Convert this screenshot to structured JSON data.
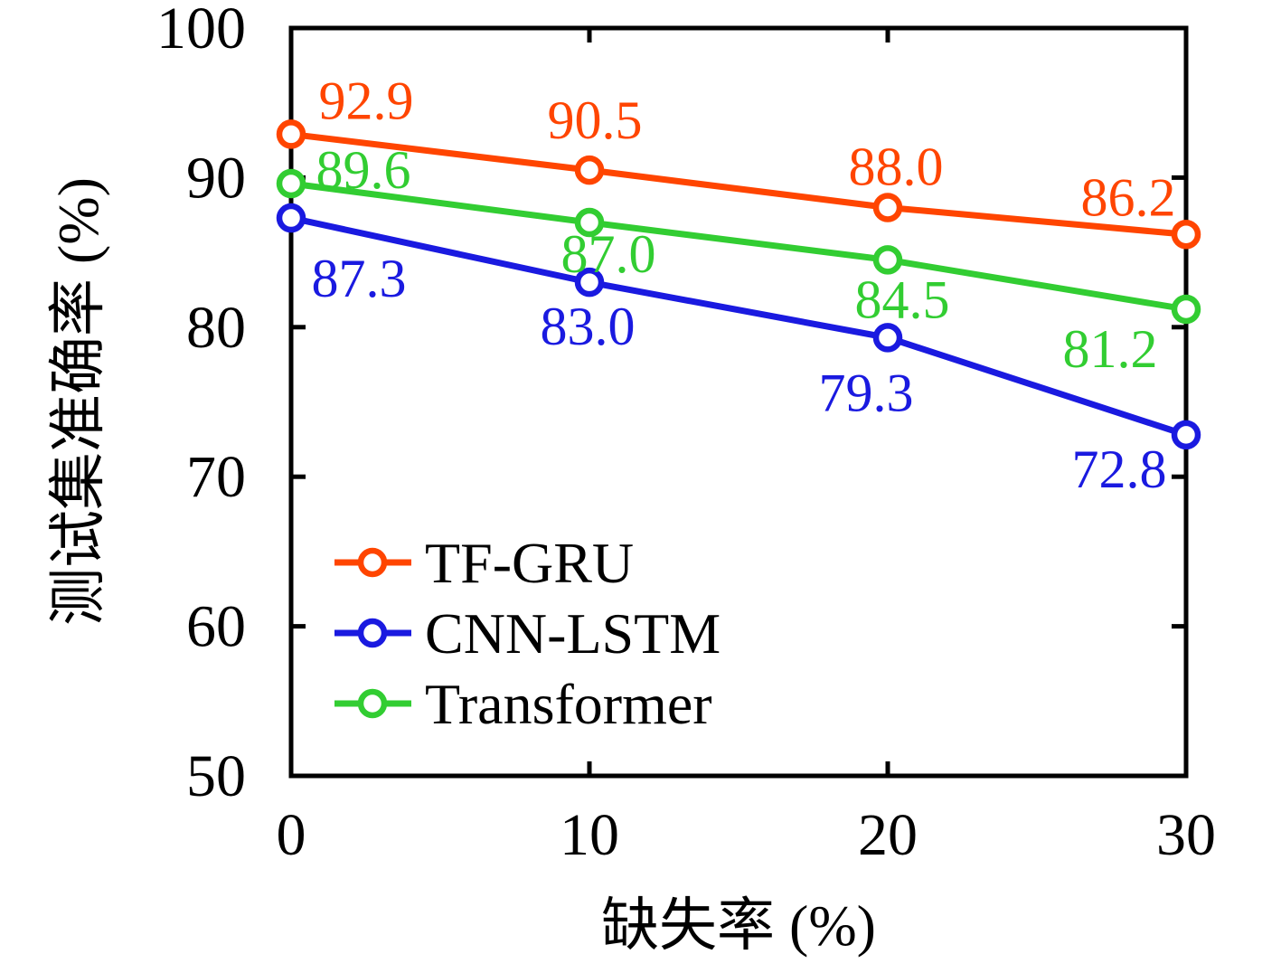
{
  "chart_data": {
    "type": "line",
    "title": "",
    "xlabel": "缺失率 (%)",
    "ylabel": "测试集准确率 (%)",
    "x": [
      0,
      10,
      20,
      30
    ],
    "xlim": [
      0,
      30
    ],
    "ylim": [
      50,
      100
    ],
    "x_ticks": [
      0,
      10,
      20,
      30
    ],
    "y_ticks": [
      50,
      60,
      70,
      80,
      90,
      100
    ],
    "grid": false,
    "marker": "open-circle",
    "axis_color": "#000000",
    "background": "#ffffff",
    "legend": {
      "position": "inside-lower-left",
      "entries": [
        "TF-GRU",
        "CNN-LSTM",
        "Transformer"
      ]
    },
    "series": [
      {
        "name": "TF-GRU",
        "color": "#ff4500",
        "values": [
          92.9,
          90.5,
          88.0,
          86.2
        ],
        "label_offsets": [
          [
            83,
            -38
          ],
          [
            6,
            -56
          ],
          [
            9,
            -46
          ],
          [
            -64,
            -42
          ]
        ]
      },
      {
        "name": "CNN-LSTM",
        "color": "#1a1ae0",
        "values": [
          87.3,
          83.0,
          79.3,
          72.8
        ],
        "label_offsets": [
          [
            75,
            66
          ],
          [
            -2,
            48
          ],
          [
            -24,
            60
          ],
          [
            -74,
            37
          ]
        ]
      },
      {
        "name": "Transformer",
        "color": "#32cd32",
        "values": [
          89.6,
          87.0,
          84.5,
          81.2
        ],
        "label_offsets": [
          [
            80,
            -16
          ],
          [
            21,
            34
          ],
          [
            16,
            43
          ],
          [
            -84,
            43
          ]
        ]
      }
    ]
  }
}
